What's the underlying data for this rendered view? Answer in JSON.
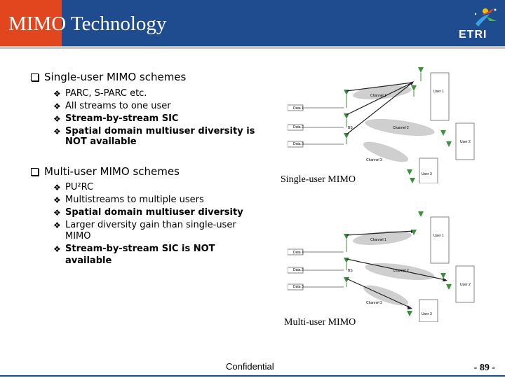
{
  "header": {
    "title": "MIMO Technology",
    "logo_text": "ETRI"
  },
  "colors": {
    "header_bg": "#1f4c8f",
    "accent": "#e2461f"
  },
  "section1": {
    "heading": "Single-user MIMO schemes",
    "items": [
      {
        "lines": [
          "PARC, S-PARC etc."
        ],
        "bold": false
      },
      {
        "lines": [
          "All streams to one user"
        ],
        "bold": false
      },
      {
        "lines": [
          "Stream-by-stream SIC"
        ],
        "bold": true
      },
      {
        "lines": [
          "Spatial domain multiuser diversity is",
          "NOT available"
        ],
        "bold": true
      }
    ]
  },
  "section2": {
    "heading": "Multi-user MIMO schemes",
    "items": [
      {
        "lines": [
          "PU²RC"
        ],
        "bold": false
      },
      {
        "lines": [
          "Multistreams to multiple users"
        ],
        "bold": false
      },
      {
        "lines": [
          "Spatial domain multiuser diversity"
        ],
        "bold": true
      },
      {
        "lines": [
          "Larger diversity gain than single-user",
          "MIMO"
        ],
        "bold": false
      },
      {
        "lines": [
          "Stream-by-stream SIC is NOT",
          "available"
        ],
        "bold": true
      }
    ]
  },
  "diagrams": {
    "single": {
      "caption": "Single-user MIMO",
      "labels": {
        "data1": "Data 1",
        "data2": "Data 2",
        "data3": "Data 3",
        "bs": "BS",
        "ch1": "Channel 1",
        "ch2": "Channel 2",
        "ch3": "Channel 3",
        "user1": "User 1",
        "user2": "User 2",
        "user3": "User 3"
      }
    },
    "multi": {
      "caption": "Multi-user MIMO",
      "labels": {
        "data1": "Data 1",
        "data2": "Data 2",
        "data3": "Data 3",
        "bs": "BS",
        "ch1": "Channel 1",
        "ch2": "Channel 2",
        "ch3": "Channel 3",
        "user1": "User 1",
        "user2": "User 2",
        "user3": "User 3"
      }
    }
  },
  "footer": {
    "confidential": "Confidential",
    "page": "- 89 -"
  }
}
